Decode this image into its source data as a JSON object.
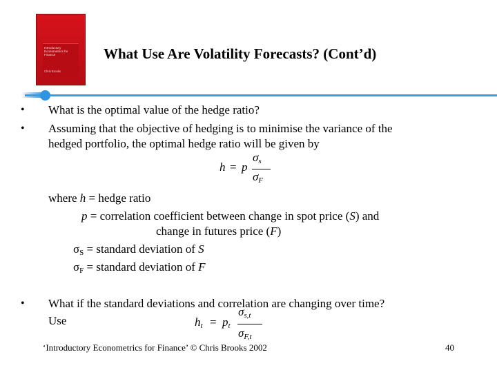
{
  "cover": {
    "title": "Introductory Econometrics for Finance",
    "author": "Chris Brooks"
  },
  "title": "What Use Are Volatility Forecasts? (Cont’d)",
  "bullets": [
    "What is the optimal value of the hedge ratio?",
    "Assuming that the objective of hedging is to minimise the variance of the",
    "What if the standard deviations and correlation are changing over time?"
  ],
  "bullet_marker": "•",
  "bullet2_cont": "hedged portfolio, the optimal hedge ratio will be given by",
  "bullet3_cont": "Use",
  "formula1": {
    "lhs": "h",
    "eq": "=",
    "coef": "p",
    "num_sym": "σ",
    "num_sub": "s",
    "den_sym": "σ",
    "den_sub": "F"
  },
  "definitions": {
    "where": "where ",
    "h_sym": "h",
    "h_def": " = hedge ratio",
    "p_sym": "p",
    "p_def_1": " =  correlation coefficient between change in spot price (",
    "S": "S",
    "p_def_1_end": ") and",
    "p_def_2_start": "change in futures price (",
    "F": "F",
    "p_def_2_end": ")",
    "sigma": "σ",
    "sub_S": "S",
    "sigmaS_def": " = standard deviation of ",
    "sub_F": "F",
    "sigmaF_def": " = standard deviation of "
  },
  "formula2": {
    "lhs": "h",
    "lhs_sub": "t",
    "eq": "=",
    "coef": "p",
    "coef_sub": "t",
    "num_sym": "σ",
    "num_sub": "s,t",
    "den_sym": "σ",
    "den_sub": "F,t"
  },
  "footer": {
    "citation": "‘Introductory Econometrics for Finance’ © Chris Brooks 2002",
    "page_number": "40"
  },
  "colors": {
    "accent_blue": "#3a9be0",
    "cover_red": "#d8121b"
  }
}
